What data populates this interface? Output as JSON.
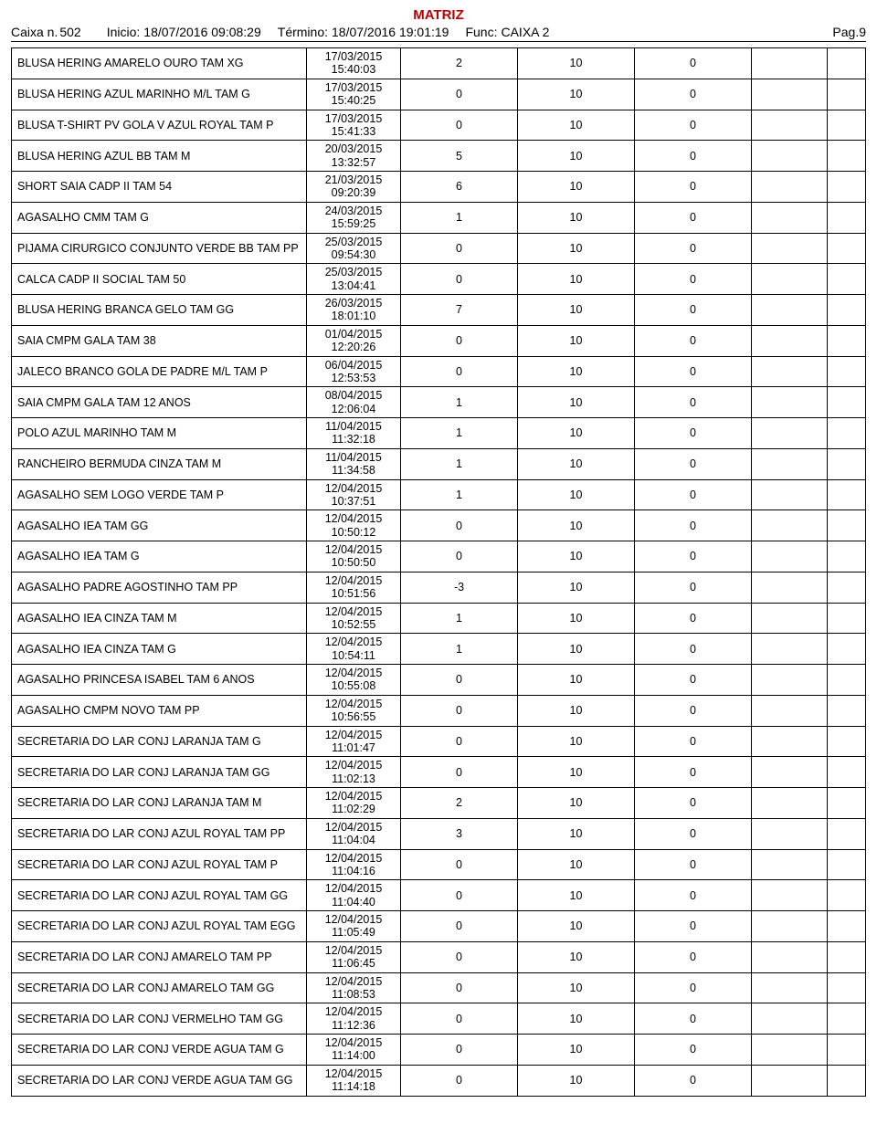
{
  "title": "MATRIZ",
  "header": {
    "caixa_label": "Caixa n.",
    "caixa_value": "502",
    "inicio_label": "Inicio:",
    "inicio_value": "18/07/2016 09:08:29",
    "termino_label": "Término:",
    "termino_value": "18/07/2016 19:01:19",
    "func_label": "Func:",
    "func_value": "CAIXA 2",
    "page": "Pag.9"
  },
  "rows": [
    {
      "desc": "BLUSA HERING AMARELO OURO TAM XG",
      "date": "17/03/2015",
      "time": "15:40:03",
      "c1": "2",
      "c2": "10",
      "c3": "0"
    },
    {
      "desc": "BLUSA HERING AZUL MARINHO M/L TAM G",
      "date": "17/03/2015",
      "time": "15:40:25",
      "c1": "0",
      "c2": "10",
      "c3": "0"
    },
    {
      "desc": "BLUSA T-SHIRT PV GOLA V AZUL ROYAL TAM P",
      "date": "17/03/2015",
      "time": "15:41:33",
      "c1": "0",
      "c2": "10",
      "c3": "0"
    },
    {
      "desc": "BLUSA HERING AZUL BB TAM M",
      "date": "20/03/2015",
      "time": "13:32:57",
      "c1": "5",
      "c2": "10",
      "c3": "0"
    },
    {
      "desc": "SHORT SAIA CADP II TAM 54",
      "date": "21/03/2015",
      "time": "09:20:39",
      "c1": "6",
      "c2": "10",
      "c3": "0"
    },
    {
      "desc": "AGASALHO CMM TAM G",
      "date": "24/03/2015",
      "time": "15:59:25",
      "c1": "1",
      "c2": "10",
      "c3": "0"
    },
    {
      "desc": "PIJAMA CIRURGICO CONJUNTO VERDE BB TAM PP",
      "date": "25/03/2015",
      "time": "09:54:30",
      "c1": "0",
      "c2": "10",
      "c3": "0"
    },
    {
      "desc": "CALCA CADP II SOCIAL TAM 50",
      "date": "25/03/2015",
      "time": "13:04:41",
      "c1": "0",
      "c2": "10",
      "c3": "0"
    },
    {
      "desc": "BLUSA HERING BRANCA GELO TAM GG",
      "date": "26/03/2015",
      "time": "18:01:10",
      "c1": "7",
      "c2": "10",
      "c3": "0"
    },
    {
      "desc": "SAIA CMPM GALA TAM 38",
      "date": "01/04/2015",
      "time": "12:20:26",
      "c1": "0",
      "c2": "10",
      "c3": "0"
    },
    {
      "desc": "JALECO BRANCO GOLA DE PADRE M/L TAM P",
      "date": "06/04/2015",
      "time": "12:53:53",
      "c1": "0",
      "c2": "10",
      "c3": "0"
    },
    {
      "desc": "SAIA CMPM GALA TAM 12 ANOS",
      "date": "08/04/2015",
      "time": "12:06:04",
      "c1": "1",
      "c2": "10",
      "c3": "0"
    },
    {
      "desc": "POLO AZUL MARINHO TAM M",
      "date": "11/04/2015",
      "time": "11:32:18",
      "c1": "1",
      "c2": "10",
      "c3": "0"
    },
    {
      "desc": "RANCHEIRO BERMUDA CINZA TAM M",
      "date": "11/04/2015",
      "time": "11:34:58",
      "c1": "1",
      "c2": "10",
      "c3": "0"
    },
    {
      "desc": "AGASALHO SEM LOGO VERDE TAM P",
      "date": "12/04/2015",
      "time": "10:37:51",
      "c1": "1",
      "c2": "10",
      "c3": "0"
    },
    {
      "desc": "AGASALHO IEA TAM GG",
      "date": "12/04/2015",
      "time": "10:50:12",
      "c1": "0",
      "c2": "10",
      "c3": "0"
    },
    {
      "desc": "AGASALHO IEA TAM G",
      "date": "12/04/2015",
      "time": "10:50:50",
      "c1": "0",
      "c2": "10",
      "c3": "0"
    },
    {
      "desc": "AGASALHO PADRE AGOSTINHO TAM PP",
      "date": "12/04/2015",
      "time": "10:51:56",
      "c1": "-3",
      "c2": "10",
      "c3": "0"
    },
    {
      "desc": "AGASALHO IEA CINZA TAM M",
      "date": "12/04/2015",
      "time": "10:52:55",
      "c1": "1",
      "c2": "10",
      "c3": "0"
    },
    {
      "desc": "AGASALHO IEA CINZA TAM G",
      "date": "12/04/2015",
      "time": "10:54:11",
      "c1": "1",
      "c2": "10",
      "c3": "0"
    },
    {
      "desc": "AGASALHO PRINCESA ISABEL TAM 6 ANOS",
      "date": "12/04/2015",
      "time": "10:55:08",
      "c1": "0",
      "c2": "10",
      "c3": "0"
    },
    {
      "desc": "AGASALHO CMPM NOVO TAM PP",
      "date": "12/04/2015",
      "time": "10:56:55",
      "c1": "0",
      "c2": "10",
      "c3": "0"
    },
    {
      "desc": "SECRETARIA DO LAR CONJ LARANJA TAM G",
      "date": "12/04/2015",
      "time": "11:01:47",
      "c1": "0",
      "c2": "10",
      "c3": "0"
    },
    {
      "desc": "SECRETARIA DO LAR CONJ LARANJA TAM GG",
      "date": "12/04/2015",
      "time": "11:02:13",
      "c1": "0",
      "c2": "10",
      "c3": "0"
    },
    {
      "desc": "SECRETARIA DO LAR CONJ LARANJA TAM M",
      "date": "12/04/2015",
      "time": "11:02:29",
      "c1": "2",
      "c2": "10",
      "c3": "0"
    },
    {
      "desc": "SECRETARIA DO LAR CONJ AZUL ROYAL TAM PP",
      "date": "12/04/2015",
      "time": "11:04:04",
      "c1": "3",
      "c2": "10",
      "c3": "0"
    },
    {
      "desc": "SECRETARIA DO LAR CONJ AZUL ROYAL TAM P",
      "date": "12/04/2015",
      "time": "11:04:16",
      "c1": "0",
      "c2": "10",
      "c3": "0"
    },
    {
      "desc": "SECRETARIA DO LAR CONJ AZUL ROYAL TAM GG",
      "date": "12/04/2015",
      "time": "11:04:40",
      "c1": "0",
      "c2": "10",
      "c3": "0"
    },
    {
      "desc": "SECRETARIA DO LAR CONJ AZUL ROYAL TAM EGG",
      "date": "12/04/2015",
      "time": "11:05:49",
      "c1": "0",
      "c2": "10",
      "c3": "0"
    },
    {
      "desc": "SECRETARIA DO LAR CONJ AMARELO TAM PP",
      "date": "12/04/2015",
      "time": "11:06:45",
      "c1": "0",
      "c2": "10",
      "c3": "0"
    },
    {
      "desc": "SECRETARIA DO LAR CONJ AMARELO TAM GG",
      "date": "12/04/2015",
      "time": "11:08:53",
      "c1": "0",
      "c2": "10",
      "c3": "0"
    },
    {
      "desc": "SECRETARIA DO LAR CONJ VERMELHO TAM GG",
      "date": "12/04/2015",
      "time": "11:12:36",
      "c1": "0",
      "c2": "10",
      "c3": "0"
    },
    {
      "desc": "SECRETARIA DO LAR CONJ VERDE AGUA TAM G",
      "date": "12/04/2015",
      "time": "11:14:00",
      "c1": "0",
      "c2": "10",
      "c3": "0"
    },
    {
      "desc": "SECRETARIA DO LAR CONJ VERDE AGUA TAM GG",
      "date": "12/04/2015",
      "time": "11:14:18",
      "c1": "0",
      "c2": "10",
      "c3": "0"
    }
  ]
}
